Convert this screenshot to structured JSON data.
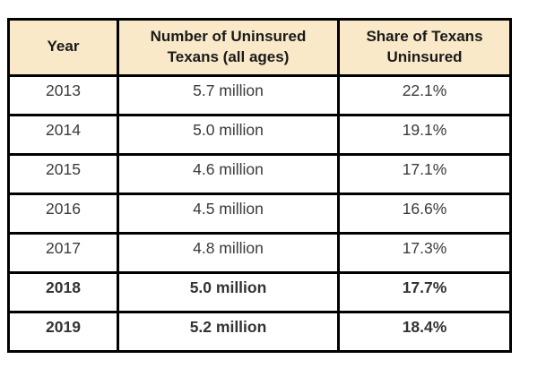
{
  "page": {
    "background_color": "#ffffff",
    "border_color": "#000000",
    "header_bg_color": "#fae9c8"
  },
  "table": {
    "header": {
      "columns": [
        "Year",
        "Number of Uninsured Texans (all ages)",
        "Share of Texans Uninsured"
      ]
    },
    "rows": [
      {
        "year": "2013",
        "number": "5.7 million",
        "share": "22.1%",
        "bold": false
      },
      {
        "year": "2014",
        "number": "5.0 million",
        "share": "19.1%",
        "bold": false
      },
      {
        "year": "2015",
        "number": "4.6 million",
        "share": "17.1%",
        "bold": false
      },
      {
        "year": "2016",
        "number": "4.5 million",
        "share": "16.6%",
        "bold": false
      },
      {
        "year": "2017",
        "number": "4.8 million",
        "share": "17.3%",
        "bold": false
      },
      {
        "year": "2018",
        "number": "5.0 million",
        "share": "17.7%",
        "bold": true
      },
      {
        "year": "2019",
        "number": "5.2 million",
        "share": "18.4%",
        "bold": true
      }
    ]
  }
}
